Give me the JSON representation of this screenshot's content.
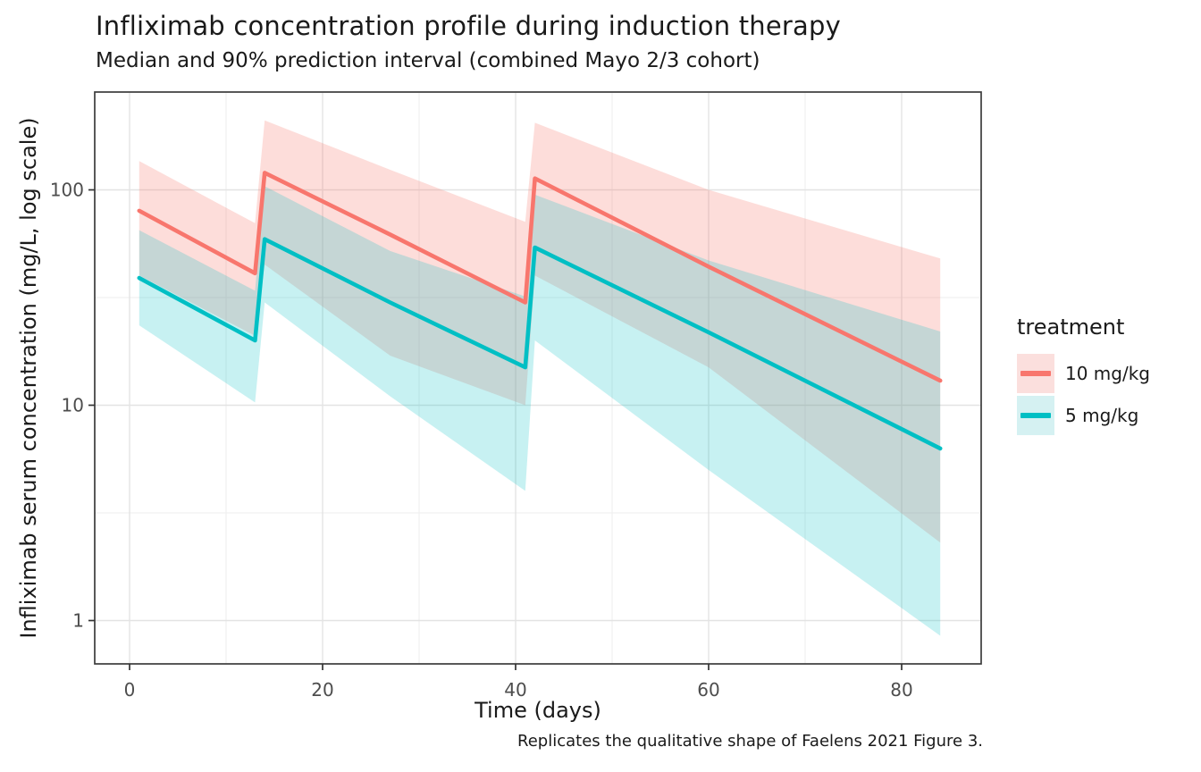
{
  "title": "Infliximab concentration profile during induction therapy",
  "subtitle": "Median and 90% prediction interval (combined Mayo 2/3 cohort)",
  "caption": "Replicates the qualitative shape of Faelens 2021 Figure 3.",
  "x_axis": {
    "label": "Time (days)",
    "major_ticks": [
      0,
      20,
      40,
      60,
      80
    ],
    "minor_ticks": [
      10,
      30,
      50,
      70
    ],
    "range": [
      -3.6,
      88.2
    ]
  },
  "y_axis": {
    "label": "Infliximab serum concentration (mg/L, log scale)",
    "scale": "log10",
    "major_ticks": [
      1,
      10,
      100
    ],
    "minor_ticks": [
      3.162,
      31.62
    ],
    "range": [
      0.63,
      284
    ]
  },
  "legend": {
    "title": "treatment",
    "entries": [
      {
        "label": "10 mg/kg",
        "line_color": "#F8766D",
        "fill_color": "#FBDFDD"
      },
      {
        "label": "5 mg/kg",
        "line_color": "#00BFC4",
        "fill_color": "#D5F1F2"
      }
    ]
  },
  "chart_data": {
    "type": "line",
    "title": "Infliximab concentration profile during induction therapy",
    "subtitle": "Median and 90% prediction interval (combined Mayo 2/3 cohort)",
    "xlabel": "Time (days)",
    "ylabel": "Infliximab serum concentration (mg/L, log scale)",
    "y_scale": "log10",
    "xlim": [
      -3.6,
      88.2
    ],
    "ylim": [
      0.63,
      284
    ],
    "grid": true,
    "legend_position": "right",
    "x": [
      1,
      13,
      14,
      27,
      41,
      42,
      60,
      84
    ],
    "series": [
      {
        "name": "10 mg/kg",
        "median": [
          80,
          41,
          120,
          62,
          30,
          113,
          44,
          13
        ],
        "pi_lower": [
          40,
          21,
          45,
          17,
          10,
          40,
          15,
          2.3
        ],
        "pi_upper": [
          136,
          70,
          210,
          124,
          71,
          205,
          100,
          48
        ],
        "line_color": "#F8766D",
        "ribbon_color": "rgba(248,118,109,0.25)"
      },
      {
        "name": "5 mg/kg",
        "median": [
          39,
          20,
          59,
          30,
          15,
          54,
          21.8,
          6.3
        ],
        "pi_lower": [
          23.5,
          10.3,
          30,
          11,
          4,
          20,
          5,
          0.85
        ],
        "pi_upper": [
          65,
          34,
          104,
          52,
          32,
          95,
          47,
          22
        ],
        "line_color": "#00BFC4",
        "ribbon_color": "rgba(0,191,196,0.22)"
      }
    ]
  }
}
